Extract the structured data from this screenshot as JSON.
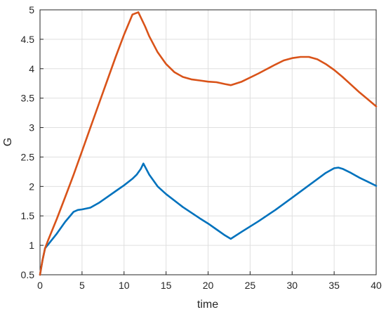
{
  "chart_data": {
    "type": "line",
    "xlabel": "time",
    "ylabel": "G",
    "xlim": [
      0,
      40
    ],
    "ylim": [
      0.5,
      5
    ],
    "xticks": [
      "0",
      "5",
      "10",
      "15",
      "20",
      "25",
      "30",
      "35",
      "40"
    ],
    "yticks": [
      "0.5",
      "1",
      "1.5",
      "2",
      "2.5",
      "3",
      "3.5",
      "4",
      "4.5",
      "5"
    ],
    "grid": true,
    "legend": "none",
    "series": [
      {
        "color": "#0072BD",
        "x": [
          0,
          0.3,
          0.6,
          1,
          2,
          3,
          4,
          4.5,
          5,
          6,
          7,
          8,
          9,
          10,
          11,
          11.5,
          12,
          12.3,
          13,
          14,
          15,
          17,
          19,
          20,
          21,
          22,
          22.7,
          24,
          26,
          28,
          30,
          32,
          34,
          35,
          35.5,
          36,
          37,
          38,
          39,
          40
        ],
        "y": [
          0.5,
          0.75,
          0.95,
          1.02,
          1.2,
          1.4,
          1.57,
          1.6,
          1.61,
          1.64,
          1.72,
          1.82,
          1.92,
          2.02,
          2.13,
          2.2,
          2.3,
          2.39,
          2.2,
          2.0,
          1.87,
          1.65,
          1.46,
          1.37,
          1.27,
          1.17,
          1.11,
          1.23,
          1.41,
          1.6,
          1.81,
          2.02,
          2.23,
          2.31,
          2.32,
          2.3,
          2.23,
          2.15,
          2.08,
          2.01
        ]
      },
      {
        "color": "#D95319",
        "x": [
          0,
          0.3,
          0.6,
          1,
          2,
          3,
          4,
          5,
          6,
          7,
          8,
          9,
          10,
          11,
          11.7,
          12.5,
          13,
          14,
          15,
          16,
          17,
          18,
          19,
          20,
          21,
          22,
          22.7,
          24,
          26,
          28,
          29,
          30,
          31,
          32,
          33,
          34,
          35,
          36,
          37,
          38,
          39,
          40
        ],
        "y": [
          0.5,
          0.75,
          0.95,
          1.1,
          1.45,
          1.82,
          2.2,
          2.6,
          3.0,
          3.4,
          3.8,
          4.2,
          4.58,
          4.92,
          4.96,
          4.72,
          4.55,
          4.28,
          4.08,
          3.94,
          3.86,
          3.82,
          3.8,
          3.78,
          3.77,
          3.74,
          3.72,
          3.78,
          3.92,
          4.07,
          4.14,
          4.18,
          4.2,
          4.2,
          4.16,
          4.08,
          3.98,
          3.86,
          3.73,
          3.6,
          3.48,
          3.36
        ]
      }
    ]
  }
}
